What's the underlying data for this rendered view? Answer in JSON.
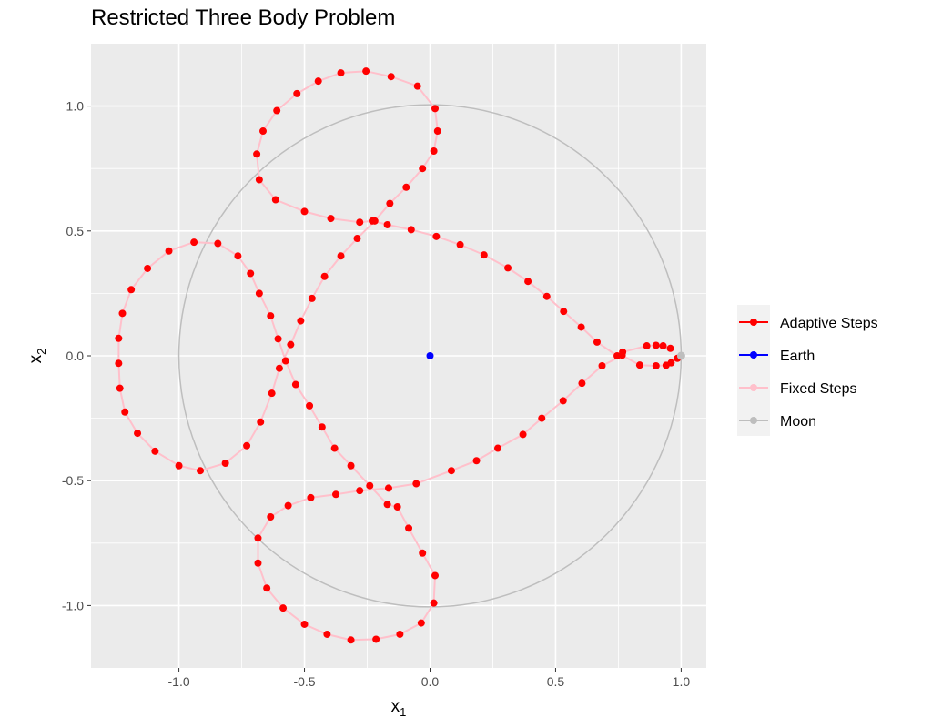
{
  "chart_data": {
    "type": "scatter",
    "title": "Restricted Three Body Problem",
    "xlabel": "x",
    "xlabel_sub": "1",
    "ylabel": "x",
    "ylabel_sub": "2",
    "xlim": [
      -1.35,
      1.1
    ],
    "ylim": [
      -1.25,
      1.25
    ],
    "xticks": [
      -1.0,
      -0.5,
      0.0,
      0.5,
      1.0
    ],
    "xtick_labels": [
      "-1.0",
      "-0.5",
      "0.0",
      "0.5",
      "1.0"
    ],
    "yticks": [
      -1.0,
      -0.5,
      0.0,
      0.5,
      1.0
    ],
    "ytick_labels": [
      "-1.0",
      "-0.5",
      "0.0",
      "0.5",
      "1.0"
    ],
    "grid": true,
    "legend_position": "right",
    "circle": {
      "center": [
        0,
        0
      ],
      "radius": 1.0,
      "color": "#bebebe"
    },
    "series": [
      {
        "name": "Adaptive Steps",
        "color": "#ff0000",
        "points": [
          [
            0.957,
            0.03
          ],
          [
            0.928,
            0.04
          ],
          [
            0.9,
            0.042
          ],
          [
            0.863,
            0.04
          ],
          [
            0.767,
            0.015
          ],
          [
            0.745,
            0.0
          ],
          [
            0.665,
            0.055
          ],
          [
            0.602,
            0.115
          ],
          [
            0.532,
            0.178
          ],
          [
            0.465,
            0.238
          ],
          [
            0.39,
            0.298
          ],
          [
            0.31,
            0.352
          ],
          [
            0.215,
            0.404
          ],
          [
            0.12,
            0.445
          ],
          [
            0.025,
            0.478
          ],
          [
            -0.075,
            0.505
          ],
          [
            -0.17,
            0.525
          ],
          [
            -0.23,
            0.54
          ],
          [
            -0.28,
            0.535
          ],
          [
            -0.395,
            0.55
          ],
          [
            -0.5,
            0.578
          ],
          [
            -0.615,
            0.625
          ],
          [
            -0.68,
            0.705
          ],
          [
            -0.69,
            0.808
          ],
          [
            -0.665,
            0.9
          ],
          [
            -0.61,
            0.982
          ],
          [
            -0.53,
            1.05
          ],
          [
            -0.445,
            1.1
          ],
          [
            -0.355,
            1.133
          ],
          [
            -0.255,
            1.14
          ],
          [
            -0.155,
            1.118
          ],
          [
            -0.05,
            1.08
          ],
          [
            0.02,
            0.99
          ],
          [
            0.03,
            0.9
          ],
          [
            0.015,
            0.82
          ],
          [
            -0.03,
            0.75
          ],
          [
            -0.095,
            0.675
          ],
          [
            -0.16,
            0.61
          ],
          [
            -0.22,
            0.54
          ],
          [
            -0.29,
            0.47
          ],
          [
            -0.355,
            0.4
          ],
          [
            -0.42,
            0.318
          ],
          [
            -0.47,
            0.23
          ],
          [
            -0.515,
            0.14
          ],
          [
            -0.555,
            0.045
          ],
          [
            -0.6,
            -0.05
          ],
          [
            -0.63,
            -0.15
          ],
          [
            -0.675,
            -0.265
          ],
          [
            -0.73,
            -0.36
          ],
          [
            -0.815,
            -0.43
          ],
          [
            -0.915,
            -0.46
          ],
          [
            -1.0,
            -0.44
          ],
          [
            -1.095,
            -0.382
          ],
          [
            -1.165,
            -0.31
          ],
          [
            -1.215,
            -0.225
          ],
          [
            -1.235,
            -0.13
          ],
          [
            -1.24,
            -0.03
          ],
          [
            -1.24,
            0.07
          ],
          [
            -1.225,
            0.17
          ],
          [
            -1.19,
            0.265
          ],
          [
            -1.125,
            0.35
          ],
          [
            -1.04,
            0.42
          ],
          [
            -0.94,
            0.455
          ],
          [
            -0.845,
            0.45
          ],
          [
            -0.765,
            0.4
          ],
          [
            -0.715,
            0.33
          ],
          [
            -0.68,
            0.25
          ],
          [
            -0.635,
            0.16
          ],
          [
            -0.605,
            0.068
          ],
          [
            -0.575,
            -0.02
          ],
          [
            -0.535,
            -0.115
          ],
          [
            -0.48,
            -0.2
          ],
          [
            -0.43,
            -0.285
          ],
          [
            -0.38,
            -0.37
          ],
          [
            -0.315,
            -0.44
          ],
          [
            -0.24,
            -0.52
          ],
          [
            -0.17,
            -0.595
          ],
          [
            -0.13,
            -0.605
          ],
          [
            -0.085,
            -0.69
          ],
          [
            -0.03,
            -0.79
          ],
          [
            0.02,
            -0.88
          ],
          [
            0.015,
            -0.99
          ],
          [
            -0.035,
            -1.07
          ],
          [
            -0.12,
            -1.115
          ],
          [
            -0.215,
            -1.135
          ],
          [
            -0.315,
            -1.138
          ],
          [
            -0.41,
            -1.115
          ],
          [
            -0.5,
            -1.075
          ],
          [
            -0.585,
            -1.01
          ],
          [
            -0.65,
            -0.93
          ],
          [
            -0.685,
            -0.83
          ],
          [
            -0.685,
            -0.73
          ],
          [
            -0.635,
            -0.645
          ],
          [
            -0.565,
            -0.6
          ],
          [
            -0.475,
            -0.568
          ],
          [
            -0.375,
            -0.555
          ],
          [
            -0.28,
            -0.54
          ],
          [
            -0.165,
            -0.53
          ],
          [
            -0.055,
            -0.512
          ],
          [
            0.085,
            -0.46
          ],
          [
            0.185,
            -0.42
          ],
          [
            0.27,
            -0.37
          ],
          [
            0.37,
            -0.315
          ],
          [
            0.445,
            -0.25
          ],
          [
            0.53,
            -0.18
          ],
          [
            0.605,
            -0.11
          ],
          [
            0.685,
            -0.04
          ],
          [
            0.765,
            0.002
          ],
          [
            0.835,
            -0.037
          ],
          [
            0.9,
            -0.04
          ],
          [
            0.94,
            -0.038
          ],
          [
            0.96,
            -0.028
          ],
          [
            0.985,
            -0.01
          ]
        ]
      },
      {
        "name": "Earth",
        "color": "#0000ff",
        "points": [
          [
            0.0,
            0.0
          ]
        ]
      },
      {
        "name": "Fixed Steps",
        "color": "#ffc0cb",
        "points": []
      },
      {
        "name": "Moon",
        "color": "#bebebe",
        "points": [
          [
            1.0,
            0.0
          ]
        ]
      }
    ]
  }
}
